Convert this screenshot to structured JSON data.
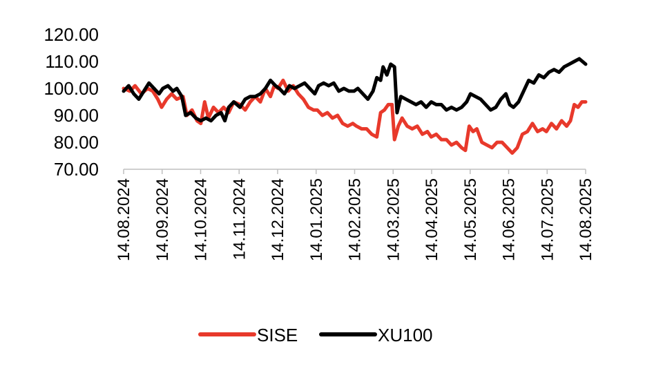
{
  "chart_data": {
    "type": "line",
    "title": "",
    "xlabel": "",
    "ylabel": "",
    "ylim": [
      70,
      120
    ],
    "yticks": [
      "70.00",
      "80.00",
      "90.00",
      "100.00",
      "110.00",
      "120.00"
    ],
    "xticks": [
      "14.08.2024",
      "14.09.2024",
      "14.10.2024",
      "14.11.2024",
      "14.12.2024",
      "14.01.2025",
      "14.02.2025",
      "14.03.2025",
      "14.04.2025",
      "14.05.2025",
      "14.06.2025",
      "14.07.2025",
      "14.08.2025"
    ],
    "grid": false,
    "legend": "bottom",
    "series": [
      {
        "name": "SISE",
        "color": "#e8392b",
        "points": [
          [
            "2024-08-14",
            100
          ],
          [
            "2024-08-19",
            99
          ],
          [
            "2024-08-23",
            101
          ],
          [
            "2024-08-28",
            98
          ],
          [
            "2024-09-02",
            100
          ],
          [
            "2024-09-06",
            99
          ],
          [
            "2024-09-10",
            96
          ],
          [
            "2024-09-13",
            93
          ],
          [
            "2024-09-17",
            96
          ],
          [
            "2024-09-21",
            98
          ],
          [
            "2024-09-25",
            96
          ],
          [
            "2024-09-30",
            97
          ],
          [
            "2024-10-03",
            90
          ],
          [
            "2024-10-07",
            92
          ],
          [
            "2024-10-11",
            88
          ],
          [
            "2024-10-14",
            87
          ],
          [
            "2024-10-17",
            95
          ],
          [
            "2024-10-20",
            89
          ],
          [
            "2024-10-24",
            93
          ],
          [
            "2024-10-28",
            91
          ],
          [
            "2024-11-01",
            93
          ],
          [
            "2024-11-05",
            91
          ],
          [
            "2024-11-09",
            95
          ],
          [
            "2024-11-14",
            94
          ],
          [
            "2024-11-18",
            92
          ],
          [
            "2024-11-22",
            95
          ],
          [
            "2024-11-26",
            97
          ],
          [
            "2024-11-30",
            95
          ],
          [
            "2024-12-04",
            100
          ],
          [
            "2024-12-08",
            97
          ],
          [
            "2024-12-11",
            101
          ],
          [
            "2024-12-14",
            100
          ],
          [
            "2024-12-18",
            103
          ],
          [
            "2024-12-22",
            99
          ],
          [
            "2024-12-26",
            101
          ],
          [
            "2024-12-30",
            98
          ],
          [
            "2025-01-03",
            96
          ],
          [
            "2025-01-07",
            93
          ],
          [
            "2025-01-11",
            92
          ],
          [
            "2025-01-14",
            92
          ],
          [
            "2025-01-18",
            90
          ],
          [
            "2025-01-22",
            91
          ],
          [
            "2025-01-26",
            89
          ],
          [
            "2025-01-30",
            90
          ],
          [
            "2025-02-03",
            87
          ],
          [
            "2025-02-07",
            86
          ],
          [
            "2025-02-11",
            87
          ],
          [
            "2025-02-14",
            86
          ],
          [
            "2025-02-18",
            85
          ],
          [
            "2025-02-22",
            85
          ],
          [
            "2025-02-26",
            83
          ],
          [
            "2025-03-02",
            82
          ],
          [
            "2025-03-05",
            91
          ],
          [
            "2025-03-08",
            92
          ],
          [
            "2025-03-11",
            94
          ],
          [
            "2025-03-14",
            94
          ],
          [
            "2025-03-16",
            81
          ],
          [
            "2025-03-19",
            86
          ],
          [
            "2025-03-22",
            89
          ],
          [
            "2025-03-26",
            86
          ],
          [
            "2025-03-30",
            85
          ],
          [
            "2025-04-03",
            86
          ],
          [
            "2025-04-07",
            83
          ],
          [
            "2025-04-11",
            84
          ],
          [
            "2025-04-14",
            82
          ],
          [
            "2025-04-18",
            83
          ],
          [
            "2025-04-22",
            81
          ],
          [
            "2025-04-26",
            81
          ],
          [
            "2025-04-30",
            79
          ],
          [
            "2025-05-04",
            80
          ],
          [
            "2025-05-08",
            78
          ],
          [
            "2025-05-11",
            77
          ],
          [
            "2025-05-14",
            86
          ],
          [
            "2025-05-17",
            84
          ],
          [
            "2025-05-20",
            85
          ],
          [
            "2025-05-24",
            80
          ],
          [
            "2025-05-28",
            79
          ],
          [
            "2025-06-01",
            78
          ],
          [
            "2025-06-05",
            80
          ],
          [
            "2025-06-09",
            80
          ],
          [
            "2025-06-13",
            78
          ],
          [
            "2025-06-17",
            76
          ],
          [
            "2025-06-21",
            78
          ],
          [
            "2025-06-25",
            83
          ],
          [
            "2025-06-29",
            84
          ],
          [
            "2025-07-03",
            87
          ],
          [
            "2025-07-07",
            84
          ],
          [
            "2025-07-11",
            85
          ],
          [
            "2025-07-14",
            84
          ],
          [
            "2025-07-18",
            87
          ],
          [
            "2025-07-22",
            85
          ],
          [
            "2025-07-26",
            88
          ],
          [
            "2025-07-30",
            86
          ],
          [
            "2025-08-02",
            88
          ],
          [
            "2025-08-05",
            94
          ],
          [
            "2025-08-08",
            93
          ],
          [
            "2025-08-11",
            95
          ],
          [
            "2025-08-14",
            95
          ]
        ]
      },
      {
        "name": "XU100",
        "color": "#000000",
        "points": [
          [
            "2024-08-14",
            99
          ],
          [
            "2024-08-18",
            101
          ],
          [
            "2024-08-22",
            98
          ],
          [
            "2024-08-26",
            96
          ],
          [
            "2024-08-30",
            99
          ],
          [
            "2024-09-03",
            102
          ],
          [
            "2024-09-07",
            100
          ],
          [
            "2024-09-11",
            98
          ],
          [
            "2024-09-14",
            100
          ],
          [
            "2024-09-18",
            101
          ],
          [
            "2024-09-22",
            99
          ],
          [
            "2024-09-25",
            100
          ],
          [
            "2024-09-29",
            97
          ],
          [
            "2024-10-02",
            90
          ],
          [
            "2024-10-06",
            91
          ],
          [
            "2024-10-10",
            89
          ],
          [
            "2024-10-14",
            88
          ],
          [
            "2024-10-18",
            89
          ],
          [
            "2024-10-22",
            88
          ],
          [
            "2024-10-26",
            90
          ],
          [
            "2024-10-30",
            91
          ],
          [
            "2024-11-02",
            88
          ],
          [
            "2024-11-05",
            93
          ],
          [
            "2024-11-09",
            95
          ],
          [
            "2024-11-14",
            93
          ],
          [
            "2024-11-18",
            96
          ],
          [
            "2024-11-22",
            97
          ],
          [
            "2024-11-26",
            97
          ],
          [
            "2024-11-30",
            98
          ],
          [
            "2024-12-04",
            100
          ],
          [
            "2024-12-08",
            103
          ],
          [
            "2024-12-12",
            101
          ],
          [
            "2024-12-15",
            100
          ],
          [
            "2024-12-19",
            98
          ],
          [
            "2024-12-23",
            101
          ],
          [
            "2024-12-27",
            100
          ],
          [
            "2024-12-31",
            101
          ],
          [
            "2025-01-04",
            102
          ],
          [
            "2025-01-08",
            100
          ],
          [
            "2025-01-12",
            98
          ],
          [
            "2025-01-15",
            101
          ],
          [
            "2025-01-19",
            102
          ],
          [
            "2025-01-23",
            101
          ],
          [
            "2025-01-27",
            102
          ],
          [
            "2025-01-31",
            99
          ],
          [
            "2025-02-04",
            100
          ],
          [
            "2025-02-08",
            99
          ],
          [
            "2025-02-12",
            99
          ],
          [
            "2025-02-15",
            100
          ],
          [
            "2025-02-19",
            98
          ],
          [
            "2025-02-23",
            96
          ],
          [
            "2025-02-27",
            99
          ],
          [
            "2025-03-02",
            104
          ],
          [
            "2025-03-05",
            103
          ],
          [
            "2025-03-07",
            108
          ],
          [
            "2025-03-10",
            105
          ],
          [
            "2025-03-13",
            109
          ],
          [
            "2025-03-16",
            108
          ],
          [
            "2025-03-18",
            91
          ],
          [
            "2025-03-21",
            97
          ],
          [
            "2025-03-25",
            96
          ],
          [
            "2025-03-29",
            95
          ],
          [
            "2025-04-02",
            94
          ],
          [
            "2025-04-06",
            95
          ],
          [
            "2025-04-10",
            93
          ],
          [
            "2025-04-14",
            95
          ],
          [
            "2025-04-18",
            94
          ],
          [
            "2025-04-22",
            94
          ],
          [
            "2025-04-26",
            92
          ],
          [
            "2025-04-30",
            93
          ],
          [
            "2025-05-04",
            92
          ],
          [
            "2025-05-08",
            93
          ],
          [
            "2025-05-12",
            95
          ],
          [
            "2025-05-15",
            98
          ],
          [
            "2025-05-19",
            97
          ],
          [
            "2025-05-23",
            96
          ],
          [
            "2025-05-27",
            94
          ],
          [
            "2025-05-31",
            92
          ],
          [
            "2025-06-04",
            93
          ],
          [
            "2025-06-08",
            96
          ],
          [
            "2025-06-12",
            98
          ],
          [
            "2025-06-15",
            94
          ],
          [
            "2025-06-18",
            93
          ],
          [
            "2025-06-22",
            95
          ],
          [
            "2025-06-26",
            99
          ],
          [
            "2025-06-30",
            103
          ],
          [
            "2025-07-04",
            102
          ],
          [
            "2025-07-08",
            105
          ],
          [
            "2025-07-12",
            104
          ],
          [
            "2025-07-16",
            106
          ],
          [
            "2025-07-20",
            107
          ],
          [
            "2025-07-24",
            106
          ],
          [
            "2025-07-28",
            108
          ],
          [
            "2025-08-01",
            109
          ],
          [
            "2025-08-05",
            110
          ],
          [
            "2025-08-09",
            111
          ],
          [
            "2025-08-14",
            109
          ]
        ]
      }
    ]
  }
}
